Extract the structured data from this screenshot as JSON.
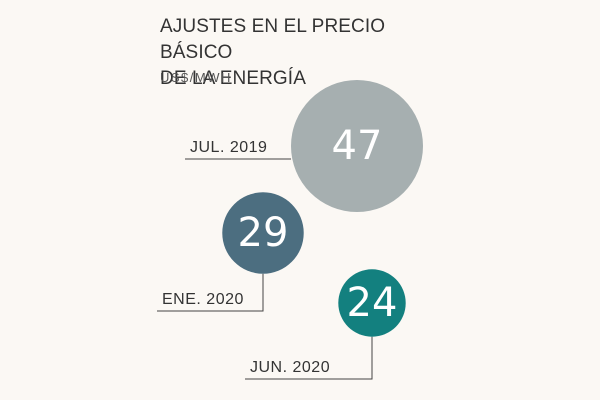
{
  "chart_data": {
    "type": "bubble",
    "title_lines": [
      "AJUSTES EN EL PRECIO BÁSICO",
      "DE LA ENERGÍA"
    ],
    "unit": "US$/MWH",
    "categories": [
      "JUL. 2019",
      "ENE. 2020",
      "JUN. 2020"
    ],
    "values": [
      47,
      29,
      24
    ],
    "colors": [
      "#a6afb0",
      "#4c6e80",
      "#13807f"
    ]
  }
}
